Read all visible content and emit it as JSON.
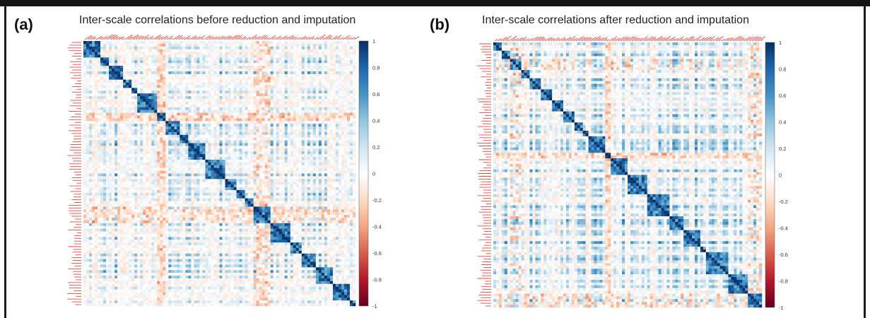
{
  "figure": {
    "panels": [
      {
        "tag": "(a)",
        "title": "Inter-scale correlations before reduction and imputation",
        "colorbar_ticks": [
          "1",
          "0.8",
          "0.6",
          "0.4",
          "0.2",
          "0",
          "-0.2",
          "-0.4",
          "-0.6",
          "-0.8",
          "-1"
        ]
      },
      {
        "tag": "(b)",
        "title": "Inter-scale correlations after reduction and imputation",
        "colorbar_ticks": [
          "1",
          "0.8",
          "0.6",
          "0.4",
          "0.2",
          "0",
          "-0.2",
          "-0.4",
          "-0.6",
          "-0.8",
          "-1"
        ]
      }
    ]
  },
  "chart_data": [
    {
      "type": "heatmap",
      "title": "Inter-scale correlations before reduction and imputation",
      "panel": "(a)",
      "matrix": "symmetric correlation matrix of questionnaire scales (row/column labels too small to read)",
      "value_range": [
        -1,
        1
      ],
      "colorbar": {
        "ticks": [
          1,
          0.8,
          0.6,
          0.4,
          0.2,
          0,
          -0.2,
          -0.4,
          -0.6,
          -0.8,
          -1
        ],
        "colors": {
          "positive": "#053061",
          "zero": "#ffffff",
          "negative": "#67001f"
        }
      },
      "diagonal_value": 1,
      "grid": false
    },
    {
      "type": "heatmap",
      "title": "Inter-scale correlations after reduction and imputation",
      "panel": "(b)",
      "matrix": "symmetric correlation matrix of questionnaire scales (row/column labels too small to read)",
      "value_range": [
        -1,
        1
      ],
      "colorbar": {
        "ticks": [
          1,
          0.8,
          0.6,
          0.4,
          0.2,
          0,
          -0.2,
          -0.4,
          -0.6,
          -0.8,
          -1
        ],
        "colors": {
          "positive": "#053061",
          "zero": "#ffffff",
          "negative": "#67001f"
        }
      },
      "diagonal_value": 1,
      "grid": false
    }
  ]
}
